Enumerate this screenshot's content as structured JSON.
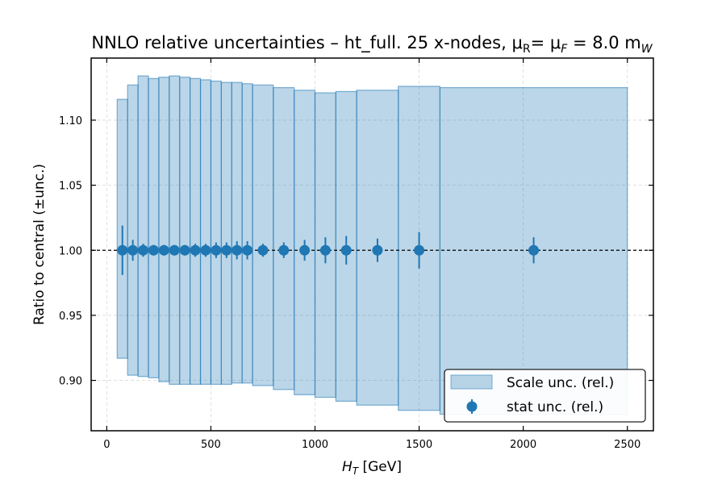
{
  "chart_data": {
    "type": "bar",
    "title": "NNLO relative uncertainties  –  ht_full. 25 x-nodes, μ",
    "title_parts": {
      "main": "NNLO relative uncertainties  –  ht_full. 25 x-nodes, μ",
      "sub_R": "R",
      "eq_mid": "= μ",
      "sub_F": "F",
      "eq_end": " = 8.0 m",
      "sub_W": "W"
    },
    "xlabel": "H",
    "xlabel_sub": "T",
    "xlabel_unit": " [GeV]",
    "ylabel": "Ratio to central (±unc.)",
    "xlim": [
      -75,
      2625
    ],
    "ylim": [
      0.8613,
      1.1477
    ],
    "xticks": [
      0,
      500,
      1000,
      1500,
      2000,
      2500
    ],
    "yticks": [
      0.9,
      0.95,
      1.0,
      1.05,
      1.1
    ],
    "ytick_labels": [
      "0.90",
      "0.95",
      "1.00",
      "1.05",
      "1.10"
    ],
    "reference_line": 1.0,
    "grid": true,
    "legend_position": "lower right",
    "series": [
      {
        "name": "Scale unc. (rel.)",
        "kind": "band",
        "color": "#1f77b4",
        "bins": [
          {
            "lo": 50,
            "hi": 100,
            "down": 0.917,
            "up": 1.116
          },
          {
            "lo": 100,
            "hi": 150,
            "down": 0.904,
            "up": 1.127
          },
          {
            "lo": 150,
            "hi": 200,
            "down": 0.903,
            "up": 1.134
          },
          {
            "lo": 200,
            "hi": 250,
            "down": 0.902,
            "up": 1.132
          },
          {
            "lo": 250,
            "hi": 300,
            "down": 0.899,
            "up": 1.133
          },
          {
            "lo": 300,
            "hi": 350,
            "down": 0.897,
            "up": 1.134
          },
          {
            "lo": 350,
            "hi": 400,
            "down": 0.897,
            "up": 1.133
          },
          {
            "lo": 400,
            "hi": 450,
            "down": 0.897,
            "up": 1.132
          },
          {
            "lo": 450,
            "hi": 500,
            "down": 0.897,
            "up": 1.131
          },
          {
            "lo": 500,
            "hi": 550,
            "down": 0.897,
            "up": 1.13
          },
          {
            "lo": 550,
            "hi": 600,
            "down": 0.897,
            "up": 1.129
          },
          {
            "lo": 600,
            "hi": 650,
            "down": 0.898,
            "up": 1.129
          },
          {
            "lo": 650,
            "hi": 700,
            "down": 0.898,
            "up": 1.128
          },
          {
            "lo": 700,
            "hi": 800,
            "down": 0.896,
            "up": 1.127
          },
          {
            "lo": 800,
            "hi": 900,
            "down": 0.893,
            "up": 1.125
          },
          {
            "lo": 900,
            "hi": 1000,
            "down": 0.889,
            "up": 1.123
          },
          {
            "lo": 1000,
            "hi": 1100,
            "down": 0.887,
            "up": 1.121
          },
          {
            "lo": 1100,
            "hi": 1200,
            "down": 0.884,
            "up": 1.122
          },
          {
            "lo": 1200,
            "hi": 1400,
            "down": 0.881,
            "up": 1.123
          },
          {
            "lo": 1400,
            "hi": 1600,
            "down": 0.877,
            "up": 1.126
          },
          {
            "lo": 1600,
            "hi": 2500,
            "down": 0.874,
            "up": 1.125
          }
        ]
      },
      {
        "name": "stat unc. (rel.)",
        "kind": "errorbar",
        "color": "#1f77b4",
        "points": [
          {
            "x": 75,
            "y": 1.0,
            "err": 0.019
          },
          {
            "x": 125,
            "y": 1.0,
            "err": 0.008
          },
          {
            "x": 175,
            "y": 1.0,
            "err": 0.005
          },
          {
            "x": 225,
            "y": 1.0,
            "err": 0.004
          },
          {
            "x": 275,
            "y": 1.0,
            "err": 0.004
          },
          {
            "x": 325,
            "y": 1.0,
            "err": 0.004
          },
          {
            "x": 375,
            "y": 1.0,
            "err": 0.004
          },
          {
            "x": 425,
            "y": 1.0,
            "err": 0.005
          },
          {
            "x": 475,
            "y": 1.0,
            "err": 0.005
          },
          {
            "x": 525,
            "y": 1.0,
            "err": 0.006
          },
          {
            "x": 575,
            "y": 1.0,
            "err": 0.006
          },
          {
            "x": 625,
            "y": 1.0,
            "err": 0.007
          },
          {
            "x": 675,
            "y": 1.0,
            "err": 0.007
          },
          {
            "x": 750,
            "y": 1.0,
            "err": 0.005
          },
          {
            "x": 850,
            "y": 1.0,
            "err": 0.006
          },
          {
            "x": 950,
            "y": 1.0,
            "err": 0.008
          },
          {
            "x": 1050,
            "y": 1.0,
            "err": 0.01
          },
          {
            "x": 1150,
            "y": 1.0,
            "err": 0.011
          },
          {
            "x": 1300,
            "y": 1.0,
            "err": 0.009
          },
          {
            "x": 1500,
            "y": 1.0,
            "err": 0.014
          },
          {
            "x": 2050,
            "y": 1.0,
            "err": 0.01
          }
        ]
      }
    ]
  }
}
